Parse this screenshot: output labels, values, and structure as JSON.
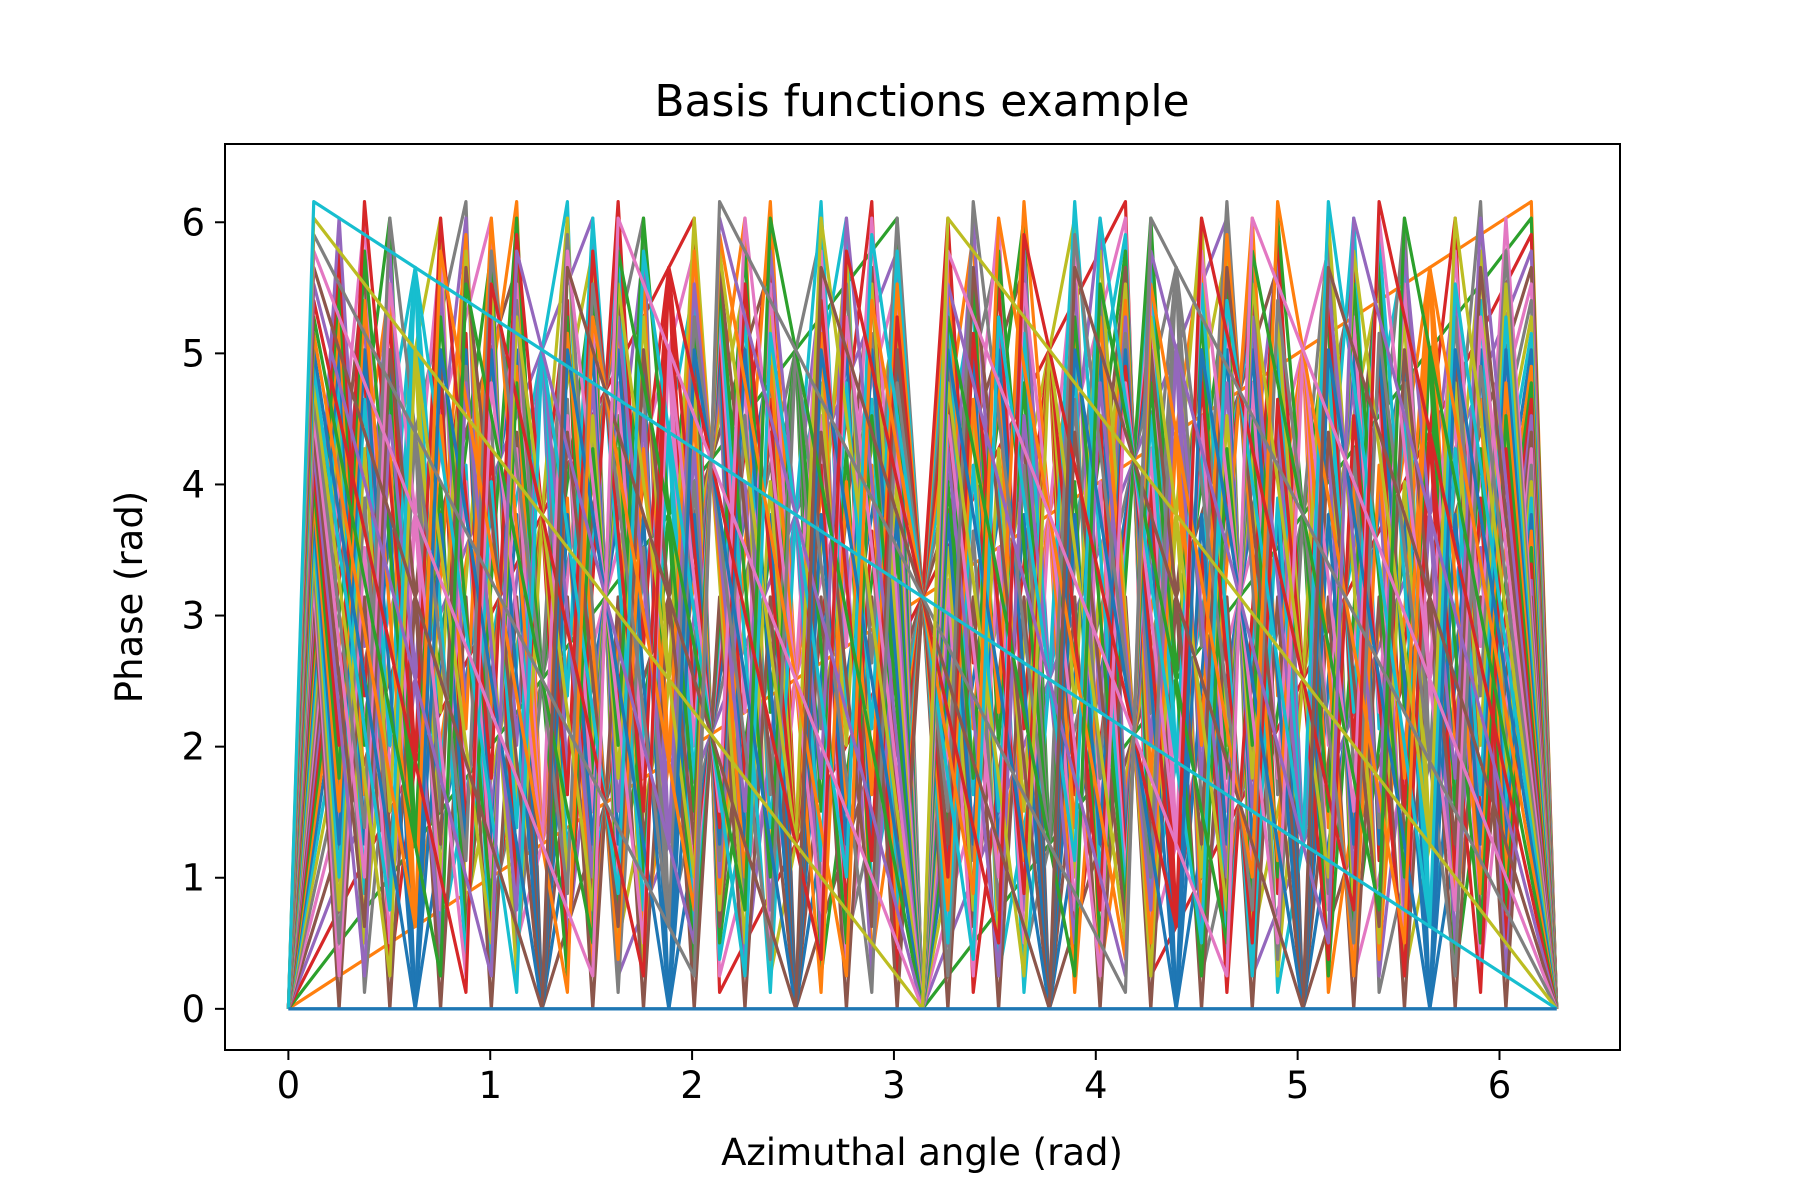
{
  "chart_data": {
    "type": "line",
    "title": "Basis functions example",
    "xlabel": "Azimuthal angle (rad)",
    "ylabel": "Phase (rad)",
    "xlim": [
      -0.314,
      6.597
    ],
    "ylim": [
      -0.314,
      6.597
    ],
    "xticks": [
      0,
      1,
      2,
      3,
      4,
      5,
      6
    ],
    "yticks": [
      0,
      1,
      2,
      3,
      4,
      5,
      6
    ],
    "grid": false,
    "legend": "none",
    "colors": [
      "#1f77b4",
      "#ff7f0e",
      "#2ca02c",
      "#d62728",
      "#9467bd",
      "#8c564b",
      "#e377c2",
      "#7f7f7f",
      "#bcbd22",
      "#17becf"
    ],
    "basis": {
      "description": "For each integer n = 1..50 a series y = (n * x) mod 2π, sampled at x = 2π·k/50 for k = 0..50; plus the constant series n = 0.",
      "n_min": 0,
      "n_max": 50,
      "x_samples": 51,
      "x_max": 6.283185307
    }
  }
}
